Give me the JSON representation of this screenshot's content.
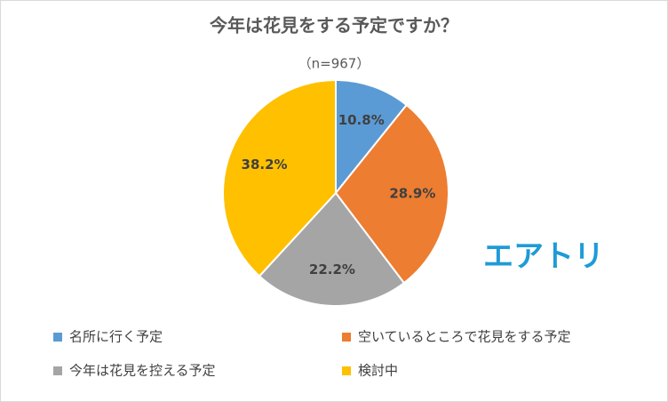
{
  "chart_data": {
    "type": "pie",
    "title": "今年は花見をする予定ですか？",
    "subtitle": "（n=967）",
    "categories": [
      "名所に行く予定",
      "空いているところで花見をする予定",
      "今年は花見を控える予定",
      "検討中"
    ],
    "values": [
      10.8,
      28.9,
      22.2,
      38.2
    ],
    "value_labels": [
      "10.8%",
      "28.9%",
      "22.2%",
      "38.2%"
    ],
    "colors": [
      "#5b9bd5",
      "#ed7d31",
      "#a5a5a5",
      "#ffc000"
    ],
    "legend": "bottom",
    "logo": "エアトリ"
  }
}
